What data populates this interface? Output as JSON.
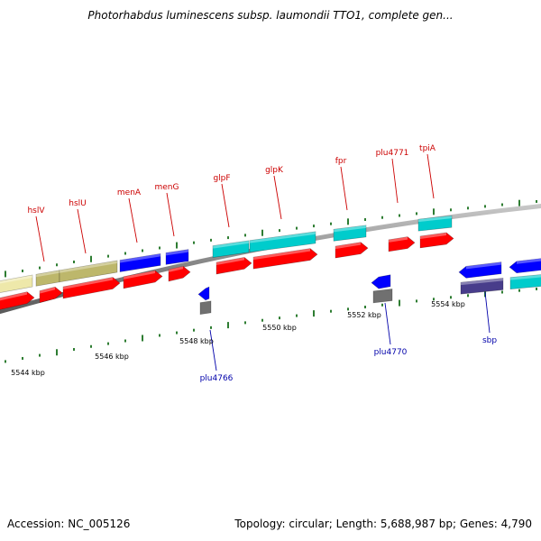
{
  "title": "Photorhabdus luminescens subsp. laumondii TTO1, complete gen...",
  "footer": {
    "accession": "Accession: NC_005126",
    "topology": "Topology: circular; Length: 5,688,987 bp; Genes: 4,790"
  },
  "colors": {
    "forward_label": "#cc0000",
    "reverse_label": "#0000aa",
    "backbone": "#888888",
    "tick": "#2e7d32",
    "cds": "#ff0000",
    "gene_blue": "#0000ff",
    "gene_cyan": "#00cccc",
    "gene_khaki": "#bdb76b",
    "gene_pale": "#eee8aa",
    "gene_gray": "#707070",
    "gene_slate": "#483d8b"
  },
  "scale_labels": [
    "5544 kbp",
    "5546 kbp",
    "5548 kbp",
    "5550 kbp",
    "5552 kbp",
    "5554 kbp"
  ],
  "forward_genes": [
    "hslV",
    "hslU",
    "menA",
    "menG",
    "glpF",
    "glpK",
    "fpr",
    "plu4771",
    "tpiA"
  ],
  "reverse_genes": [
    "plu4766",
    "plu4770",
    "sbp"
  ]
}
